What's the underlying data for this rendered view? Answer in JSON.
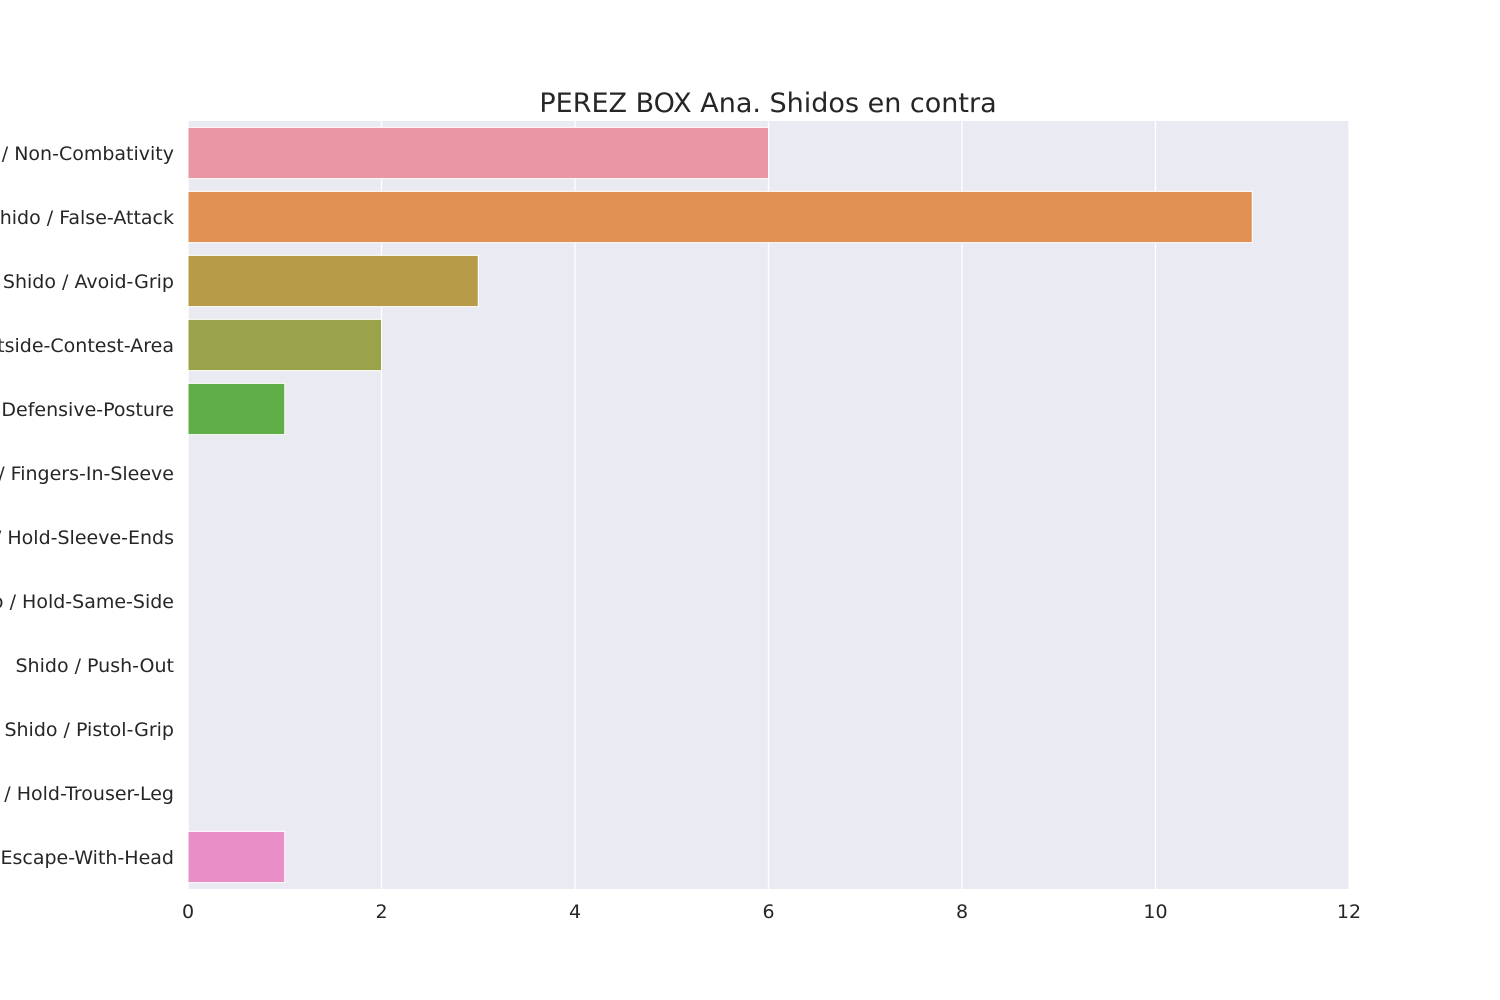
{
  "chart_data": {
    "type": "bar",
    "orientation": "horizontal",
    "title": "PEREZ BOX Ana. Shidos en contra",
    "xlabel": "",
    "ylabel": "",
    "xlim": [
      0,
      12
    ],
    "x_ticks": [
      0,
      2,
      4,
      6,
      8,
      10,
      12
    ],
    "grid": true,
    "legend": "none",
    "plot_background": "#eaeaf2",
    "grid_color": "#ffffff",
    "categories": [
      "Shido / Non-Combativity",
      "Shido / False-Attack",
      "Shido / Avoid-Grip",
      "Shido / Outside-Contest-Area",
      "Shido / Defensive-Posture",
      "Shido / Fingers-In-Sleeve",
      "Shido / Hold-Sleeve-Ends",
      "Shido / Hold-Same-Side",
      "Shido / Push-Out",
      "Shido / Pistol-Grip",
      "Shido / Hold-Trouser-Leg",
      "Shido / Escape-With-Head"
    ],
    "values": [
      6,
      11,
      3,
      2,
      1,
      0,
      0,
      0,
      0,
      0,
      0,
      1
    ],
    "colors": [
      "#ea96a3",
      "#e19153",
      "#b89b49",
      "#9aa349",
      "#60ae47",
      "#4aab83",
      "#4cab9f",
      "#50a9bb",
      "#5ba5dd",
      "#a48cf3",
      "#dd87ea",
      "#e98ec6"
    ]
  }
}
